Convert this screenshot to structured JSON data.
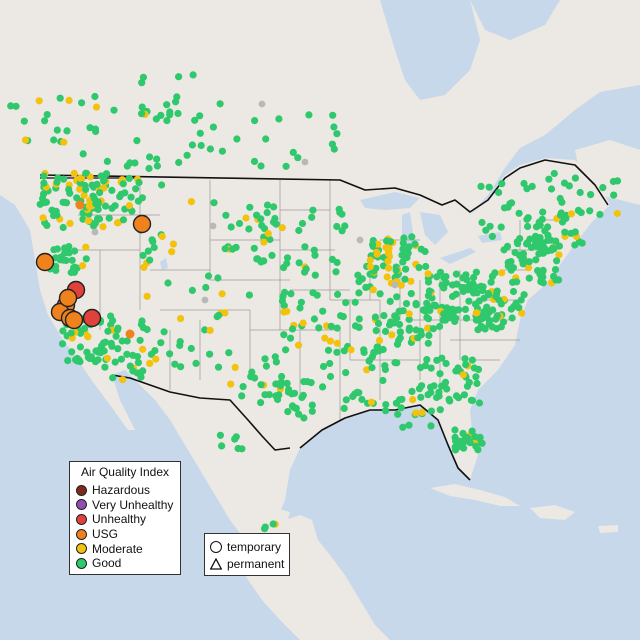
{
  "map": {
    "ocean_color": "#c6d8ea",
    "land_color": "#ece8e3",
    "us_land_color": "#e4e0db",
    "state_line_color": "#9a9a9a",
    "border_color": "#111111"
  },
  "legend": {
    "title": "Air Quality Index",
    "categories": [
      {
        "label": "Hazardous",
        "color": "#7e2a1b"
      },
      {
        "label": "Very Unhealthy",
        "color": "#8f4fb0"
      },
      {
        "label": "Unhealthy",
        "color": "#e0413a"
      },
      {
        "label": "USG",
        "color": "#f0821d"
      },
      {
        "label": "Moderate",
        "color": "#f2c20f"
      },
      {
        "label": "Good",
        "color": "#2fc86c"
      }
    ]
  },
  "monitor_type_legend": {
    "items": [
      {
        "label": "temporary",
        "icon": "circle-icon"
      },
      {
        "label": "permanent",
        "icon": "triangle-icon"
      }
    ]
  },
  "highlighted_stations": [
    {
      "category": "Unhealthy",
      "count": 3
    },
    {
      "category": "USG",
      "count": 7
    }
  ]
}
